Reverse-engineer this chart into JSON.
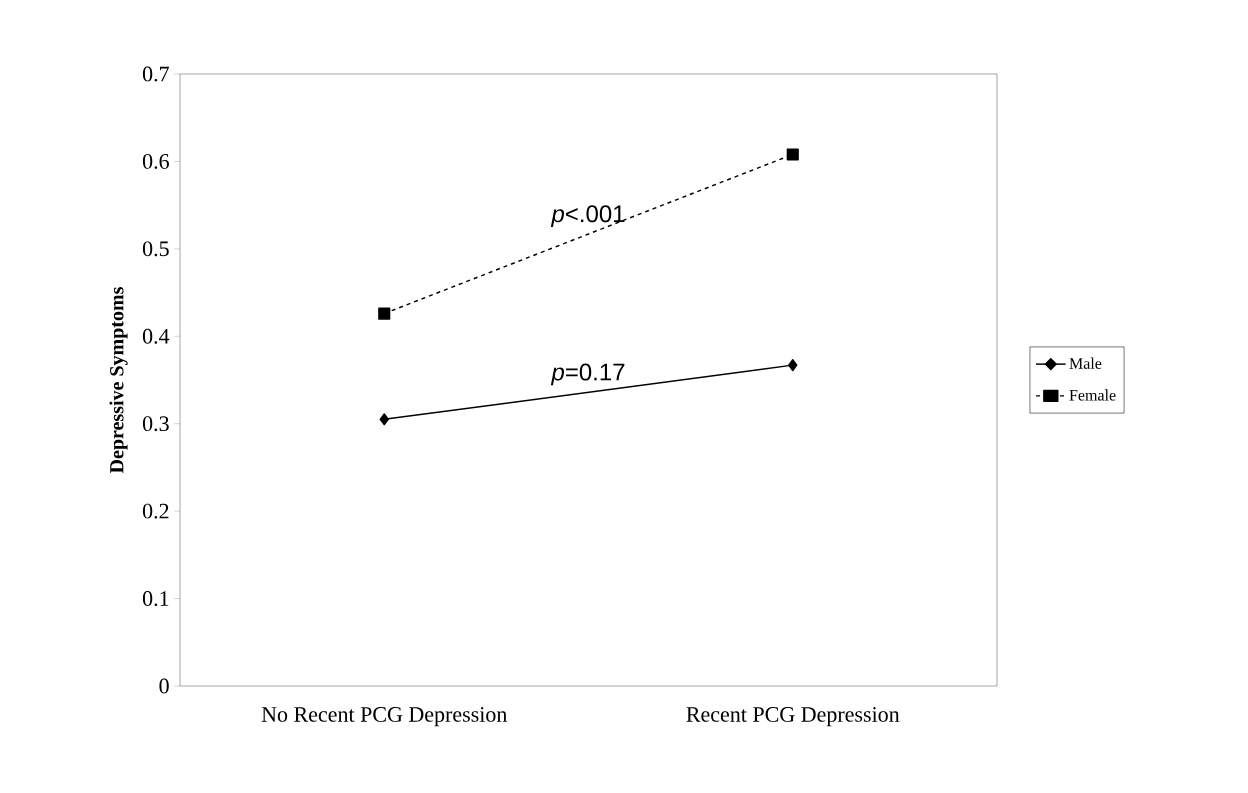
{
  "chart_data": {
    "type": "line",
    "ylabel": "Depressive Symptoms",
    "categories": [
      "No Recent PCG Depression",
      "Recent PCG Depression"
    ],
    "series": [
      {
        "name": "Male",
        "color": "#000000",
        "values": [
          0.305,
          0.367
        ],
        "marker": "diamond",
        "line_style": "solid"
      },
      {
        "name": "Female",
        "color": "#000000",
        "values": [
          0.426,
          0.608
        ],
        "marker": "square",
        "line_style": "dashed"
      }
    ],
    "ylim": [
      0,
      0.7
    ],
    "yticks": [
      0,
      0.1,
      0.2,
      0.3,
      0.4,
      0.5,
      0.6,
      0.7
    ],
    "grid": false,
    "legend": "right",
    "annotations": [
      "*p*=0.17",
      "*p*<.001"
    ]
  }
}
